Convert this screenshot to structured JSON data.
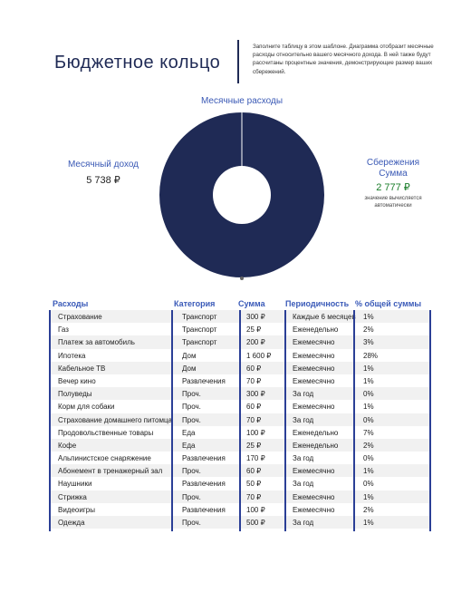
{
  "page": {
    "title": "Бюджетное кольцо",
    "intro": "Заполните таблицу в этом шаблоне. Диаграмма отобразит месячные расходы относительно вашего месячного дохода. В ней также будут рассчитаны процентные значения, демонстрирующие размер ваших сбережений."
  },
  "summary": {
    "chart_label": "Месячные расходы",
    "income_label": "Месячный доход",
    "income_value": "5 738 ₽",
    "savings_label": "Сбережения Сумма",
    "savings_value": "2 777 ₽",
    "savings_note": "значение вычисляется автоматически"
  },
  "colors": {
    "navy": "#1f2a55",
    "accent_blue": "#3a59b5",
    "green": "#1a7d2a"
  },
  "chart_data": {
    "type": "pie",
    "values": [
      100
    ],
    "colors": [
      "#1f2a55"
    ]
  },
  "table": {
    "headers": {
      "expense": "Расходы",
      "category": "Категория",
      "amount": "Сумма",
      "frequency": "Периодичность",
      "percent": "% общей суммы"
    },
    "rows": [
      {
        "expense": "Страхование",
        "category": "Транспорт",
        "amount": "300 ₽",
        "frequency": "Каждые 6 месяцев",
        "percent": "1%"
      },
      {
        "expense": "Газ",
        "category": "Транспорт",
        "amount": "25 ₽",
        "frequency": "Еженедельно",
        "percent": "2%"
      },
      {
        "expense": "Платеж за автомобиль",
        "category": "Транспорт",
        "amount": "200 ₽",
        "frequency": "Ежемесячно",
        "percent": "3%"
      },
      {
        "expense": "Ипотека",
        "category": "Дом",
        "amount": "1 600 ₽",
        "frequency": "Ежемесячно",
        "percent": "28%"
      },
      {
        "expense": "Кабельное ТВ",
        "category": "Дом",
        "amount": "60 ₽",
        "frequency": "Ежемесячно",
        "percent": "1%"
      },
      {
        "expense": "Вечер кино",
        "category": "Развлечения",
        "amount": "70 ₽",
        "frequency": "Ежемесячно",
        "percent": "1%"
      },
      {
        "expense": "Полуведы",
        "category": "Проч.",
        "amount": "300 ₽",
        "frequency": "За год",
        "percent": "0%"
      },
      {
        "expense": "Корм для собаки",
        "category": "Проч.",
        "amount": "60 ₽",
        "frequency": "Ежемесячно",
        "percent": "1%"
      },
      {
        "expense": "Страхование домашнего питомца",
        "category": "Проч.",
        "amount": "70 ₽",
        "frequency": "За год",
        "percent": "0%"
      },
      {
        "expense": "Продовольственные товары",
        "category": "Еда",
        "amount": "100 ₽",
        "frequency": "Еженедельно",
        "percent": "7%"
      },
      {
        "expense": "Кофе",
        "category": "Еда",
        "amount": "25 ₽",
        "frequency": "Еженедельно",
        "percent": "2%"
      },
      {
        "expense": "Альпинистское снаряжение",
        "category": "Развлечения",
        "amount": "170 ₽",
        "frequency": "За год",
        "percent": "0%"
      },
      {
        "expense": "Абонемент в тренажерный зал",
        "category": "Проч.",
        "amount": "60 ₽",
        "frequency": "Ежемесячно",
        "percent": "1%"
      },
      {
        "expense": "Наушники",
        "category": "Развлечения",
        "amount": "50 ₽",
        "frequency": "За год",
        "percent": "0%"
      },
      {
        "expense": "Стрижка",
        "category": "Проч.",
        "amount": "70 ₽",
        "frequency": "Ежемесячно",
        "percent": "1%"
      },
      {
        "expense": "Видеоигры",
        "category": "Развлечения",
        "amount": "100 ₽",
        "frequency": "Ежемесячно",
        "percent": "2%"
      },
      {
        "expense": "Одежда",
        "category": "Проч.",
        "amount": "500 ₽",
        "frequency": "За год",
        "percent": "1%"
      }
    ]
  }
}
